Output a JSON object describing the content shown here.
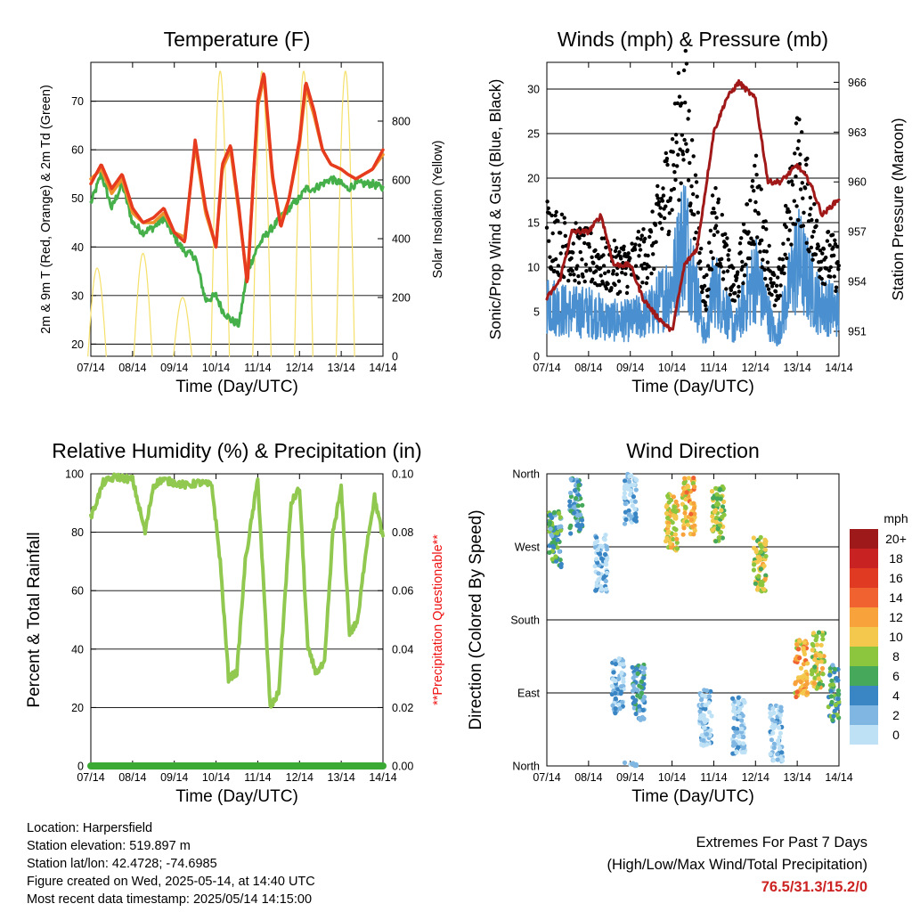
{
  "colors": {
    "temp2m": "#e63b1f",
    "temp9m": "#f0902a",
    "dewpoint": "#45b04a",
    "solar": "#f5e06a",
    "wind": "#4a90d0",
    "gust": "#000000",
    "pressure": "#a01818",
    "rh": "#90c850",
    "precip": "#3aaa35",
    "grid": "#000000",
    "questionable": "#ee1111"
  },
  "x_ticks": [
    "07/14",
    "08/14",
    "09/14",
    "10/14",
    "11/14",
    "12/14",
    "13/14",
    "14/14"
  ],
  "x_label": "Time (Day/UTC)",
  "chart_data": [
    {
      "id": "temperature",
      "type": "line",
      "title": "Temperature (F)",
      "ylabel": "2m & 9m T (Red, Orange) & 2m Td (Green)",
      "ylabel_right": "Solar Insolation (Yellow)",
      "ylim": [
        17.5,
        78
      ],
      "yticks": [
        20,
        30,
        40,
        50,
        60,
        70
      ],
      "y2lim": [
        0,
        1000
      ],
      "y2ticks": [
        0,
        200,
        400,
        600,
        800
      ],
      "x_days": [
        0,
        0.25,
        0.5,
        0.75,
        1,
        1.25,
        1.5,
        1.75,
        2,
        2.25,
        2.5,
        2.75,
        3,
        3.15,
        3.35,
        3.55,
        3.75,
        4,
        4.15,
        4.35,
        4.55,
        4.75,
        5,
        5.15,
        5.35,
        5.55,
        5.75,
        6,
        6.15,
        6.35,
        6.55,
        6.75,
        7
      ],
      "series": [
        {
          "id": "t2m",
          "values": [
            53,
            57,
            52,
            55,
            48,
            45,
            46,
            48,
            43,
            41,
            62,
            48,
            40,
            57,
            61,
            48,
            32,
            70,
            76,
            55,
            44,
            50,
            62,
            74,
            68,
            60,
            57,
            56,
            55,
            54,
            55,
            56,
            60
          ]
        },
        {
          "id": "t9m",
          "values": [
            54,
            56,
            51,
            54,
            47,
            45,
            45,
            47,
            43,
            42,
            61,
            47,
            40,
            56,
            60,
            47,
            33,
            69,
            75,
            54,
            45,
            50,
            61,
            73,
            67,
            60,
            57,
            56,
            55,
            54,
            55,
            56,
            59
          ]
        },
        {
          "id": "td2m",
          "values": [
            49,
            55,
            48,
            53,
            45,
            43,
            44,
            46,
            42,
            39,
            38,
            29,
            30,
            27,
            25,
            24,
            35,
            40,
            42,
            44,
            46,
            48,
            50,
            52,
            52,
            53,
            54,
            53,
            52,
            53,
            53,
            53,
            52
          ]
        }
      ],
      "solar_peaks": [
        {
          "day": 0.15,
          "value": 300
        },
        {
          "day": 1.25,
          "value": 350
        },
        {
          "day": 2.2,
          "value": 200
        },
        {
          "day": 3.1,
          "value": 970
        },
        {
          "day": 4.1,
          "value": 970
        },
        {
          "day": 5.1,
          "value": 970
        },
        {
          "day": 6.1,
          "value": 970
        }
      ]
    },
    {
      "id": "winds",
      "type": "scatter",
      "title": "Winds (mph) & Pressure (mb)",
      "ylabel": "Sonic/Prop Wind & Gust (Blue, Black)",
      "ylabel_right": "Station Pressure (Maroon)",
      "ylim": [
        0,
        33
      ],
      "yticks": [
        0,
        5,
        10,
        15,
        20,
        25,
        30
      ],
      "y2lim": [
        949.5,
        967.2
      ],
      "y2ticks": [
        951,
        954,
        957,
        960,
        963,
        966
      ],
      "gust_x": [
        0,
        0.5,
        1,
        1.5,
        2,
        2.5,
        3,
        3.3,
        3.5,
        3.8,
        4,
        4.5,
        5,
        5.5,
        6,
        6.5,
        7
      ],
      "gust_y": [
        14,
        12,
        11,
        10,
        10,
        12,
        21,
        28,
        19,
        6,
        16,
        7,
        18,
        6,
        22,
        12,
        10
      ],
      "wind_x": [
        0,
        0.5,
        1,
        1.5,
        2,
        2.5,
        3,
        3.3,
        3.5,
        3.8,
        4,
        4.5,
        5,
        5.5,
        6,
        6.5,
        7
      ],
      "wind_y": [
        6,
        5,
        5,
        4,
        4,
        5,
        8,
        14,
        9,
        2,
        8,
        3,
        9,
        2,
        11,
        6,
        5
      ],
      "pressure_x": [
        0,
        0.3,
        0.6,
        1,
        1.3,
        1.6,
        2,
        2.3,
        2.6,
        3,
        3.3,
        3.6,
        4,
        4.3,
        4.6,
        5,
        5.3,
        5.6,
        6,
        6.3,
        6.6,
        7
      ],
      "pressure_y": [
        953,
        954,
        957,
        957,
        958,
        955,
        955,
        953,
        952,
        951,
        955,
        956,
        963,
        965,
        966,
        965,
        960,
        960,
        961,
        960,
        958,
        959
      ]
    },
    {
      "id": "humidity",
      "type": "line",
      "title": "Relative Humidity (%) & Precipitation (in)",
      "ylabel": "Percent & Total Rainfall",
      "ylabel_right": "**Precipitation Questionable**",
      "ylim": [
        0,
        100
      ],
      "yticks": [
        0,
        20,
        40,
        60,
        80,
        100
      ],
      "y2lim": [
        0,
        0.1
      ],
      "y2ticks": [
        "0.00",
        "0.02",
        "0.04",
        "0.06",
        "0.08",
        "0.10"
      ],
      "x_days": [
        0,
        0.3,
        0.6,
        1,
        1.3,
        1.5,
        1.7,
        2,
        2.3,
        2.6,
        2.9,
        3.1,
        3.3,
        3.5,
        3.7,
        4,
        4.3,
        4.5,
        4.8,
        5,
        5.2,
        5.4,
        5.6,
        5.8,
        6,
        6.2,
        6.4,
        6.6,
        6.8,
        7
      ],
      "rh": [
        85,
        97,
        99,
        98,
        80,
        96,
        98,
        97,
        96,
        97,
        96,
        70,
        30,
        32,
        70,
        98,
        20,
        25,
        90,
        95,
        40,
        32,
        35,
        80,
        95,
        45,
        50,
        75,
        92,
        78
      ],
      "precip": 0
    },
    {
      "id": "wind_direction",
      "type": "scatter",
      "title": "Wind Direction",
      "ylabel": "Direction (Colored By Speed)",
      "yticks": [
        "North",
        "East",
        "South",
        "West",
        "North"
      ],
      "colorbar_title": "mph",
      "colorbar_labels": [
        "20+",
        "18",
        "16",
        "14",
        "12",
        "10",
        "8",
        "6",
        "4",
        "2",
        "0"
      ],
      "colorbar_colors": [
        "#9e1a1a",
        "#c92222",
        "#e03a22",
        "#f06230",
        "#f8a23c",
        "#f4c84c",
        "#8cc63f",
        "#45a85a",
        "#3a86c4",
        "#7fb6e2",
        "#bfe1f5"
      ],
      "clusters": [
        {
          "day": 0.2,
          "dir": 280,
          "speed": 6
        },
        {
          "day": 0.7,
          "dir": 320,
          "speed": 5
        },
        {
          "day": 1.3,
          "dir": 250,
          "speed": 3
        },
        {
          "day": 1.7,
          "dir": 100,
          "speed": 3
        },
        {
          "day": 2.0,
          "dir": 330,
          "speed": 2
        },
        {
          "day": 2.2,
          "dir": 90,
          "speed": 5
        },
        {
          "day": 3.0,
          "dir": 300,
          "speed": 11
        },
        {
          "day": 3.4,
          "dir": 320,
          "speed": 12
        },
        {
          "day": 3.8,
          "dir": 60,
          "speed": 2
        },
        {
          "day": 4.1,
          "dir": 310,
          "speed": 9
        },
        {
          "day": 4.6,
          "dir": 50,
          "speed": 2
        },
        {
          "day": 5.1,
          "dir": 250,
          "speed": 10
        },
        {
          "day": 5.5,
          "dir": 40,
          "speed": 2
        },
        {
          "day": 6.1,
          "dir": 120,
          "speed": 12
        },
        {
          "day": 6.5,
          "dir": 130,
          "speed": 10
        },
        {
          "day": 6.9,
          "dir": 90,
          "speed": 6
        }
      ]
    }
  ],
  "footer": {
    "location": "Location: Harpersfield",
    "elevation": "Station elevation: 519.897 m",
    "latlon": "Station lat/lon: 42.4728; -74.6985",
    "created": "Figure created on Wed, 2025-05-14, at 14:40 UTC",
    "recent": "Most recent data timestamp: 2025/05/14 14:15:00"
  },
  "extremes": {
    "title": "Extremes For Past 7 Days",
    "subtitle": "(High/Low/Max Wind/Total Precipitation)",
    "value": "76.5/31.3/15.2/0"
  }
}
